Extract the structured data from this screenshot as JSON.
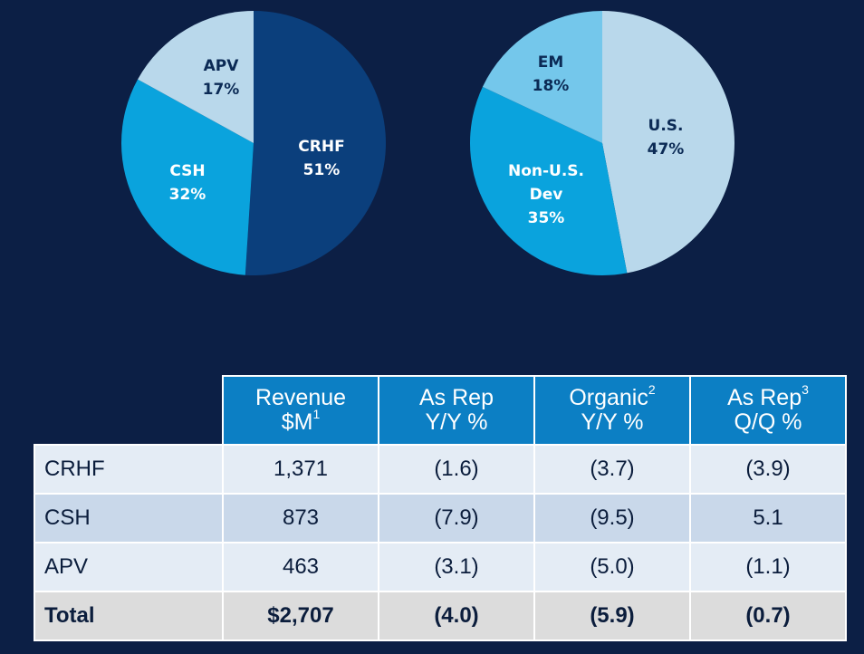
{
  "colors": {
    "background": "#0c1f45",
    "header_blue": "#0c7fc4",
    "dark_navy": "#0b3f7c",
    "bright_blue": "#0aa3dd",
    "pale_blue": "#b9d8eb",
    "sky_blue": "#74c7eb"
  },
  "chart_data": [
    {
      "type": "pie",
      "title": "",
      "slices": [
        {
          "label": "CRHF",
          "value": 51,
          "display": "51%",
          "color": "#0b3f7c",
          "text_color": "#ffffff"
        },
        {
          "label": "CSH",
          "value": 32,
          "display": "32%",
          "color": "#0aa3dd",
          "text_color": "#ffffff"
        },
        {
          "label": "APV",
          "value": 17,
          "display": "17%",
          "color": "#b9d8eb",
          "text_color": "#0b2a55"
        }
      ]
    },
    {
      "type": "pie",
      "title": "",
      "slices": [
        {
          "label": "U.S.",
          "value": 47,
          "display": "47%",
          "color": "#b9d8eb",
          "text_color": "#0b2a55"
        },
        {
          "label": "Non-U.S. Dev",
          "lines": [
            "Non-U.S.",
            "Dev"
          ],
          "value": 35,
          "display": "35%",
          "color": "#0aa3dd",
          "text_color": "#ffffff"
        },
        {
          "label": "EM",
          "value": 18,
          "display": "18%",
          "color": "#74c7eb",
          "text_color": "#0b2a55"
        }
      ]
    },
    {
      "type": "table",
      "columns": [
        {
          "line1": "Revenue",
          "line2": "$M",
          "sup": "1"
        },
        {
          "line1": "As Rep",
          "line2": "Y/Y %",
          "sup": ""
        },
        {
          "line1": "Organic",
          "line2": "Y/Y %",
          "sup": "2"
        },
        {
          "line1": "As Rep",
          "line2": "Q/Q %",
          "sup": "3"
        }
      ],
      "rows": [
        {
          "label": "CRHF",
          "values": [
            "1,371",
            "(1.6)",
            "(3.7)",
            "(3.9)"
          ]
        },
        {
          "label": "CSH",
          "values": [
            "873",
            "(7.9)",
            "(9.5)",
            "5.1"
          ]
        },
        {
          "label": "APV",
          "values": [
            "463",
            "(3.1)",
            "(5.0)",
            "(1.1)"
          ]
        },
        {
          "label": "Total",
          "values": [
            "$2,707",
            "(4.0)",
            "(5.9)",
            "(0.7)"
          ]
        }
      ]
    }
  ]
}
